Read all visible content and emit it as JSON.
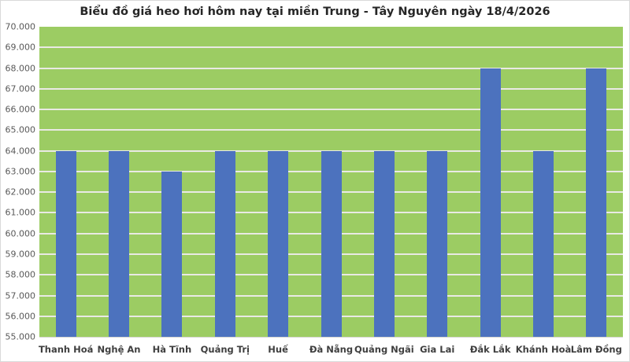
{
  "chart_data": {
    "type": "bar",
    "title": "Biểu đồ giá heo hơi hôm nay tại miền Trung - Tây Nguyên ngày 18/4/2026",
    "categories": [
      "Thanh Hoá",
      "Nghệ An",
      "Hà Tĩnh",
      "Quảng Trị",
      "Huế",
      "Đà Nẵng",
      "Quảng Ngãi",
      "Gia Lai",
      "Đắk Lắk",
      "Khánh Hoà",
      "Lâm Đồng"
    ],
    "values": [
      64000,
      64000,
      63000,
      64000,
      64000,
      64000,
      64000,
      64000,
      68000,
      64000,
      68000
    ],
    "xlabel": "",
    "ylabel": "",
    "ylim": [
      55000,
      70000
    ],
    "y_step": 1000,
    "y_tick_labels": [
      "55.000",
      "56.000",
      "57.000",
      "58.000",
      "59.000",
      "60.000",
      "61.000",
      "62.000",
      "63.000",
      "64.000",
      "65.000",
      "66.000",
      "67.000",
      "68.000",
      "69.000",
      "70.000"
    ],
    "grid": "horizontal-white",
    "legend": "none",
    "colors": {
      "bar": "#4c72be",
      "plot_background": "#9ccc63",
      "gridline": "#e9e9e4",
      "frame_border": "#d9d9d9",
      "title_text": "#262626",
      "y_axis_text": "#595959",
      "x_axis_text": "#3f3f3f"
    }
  }
}
